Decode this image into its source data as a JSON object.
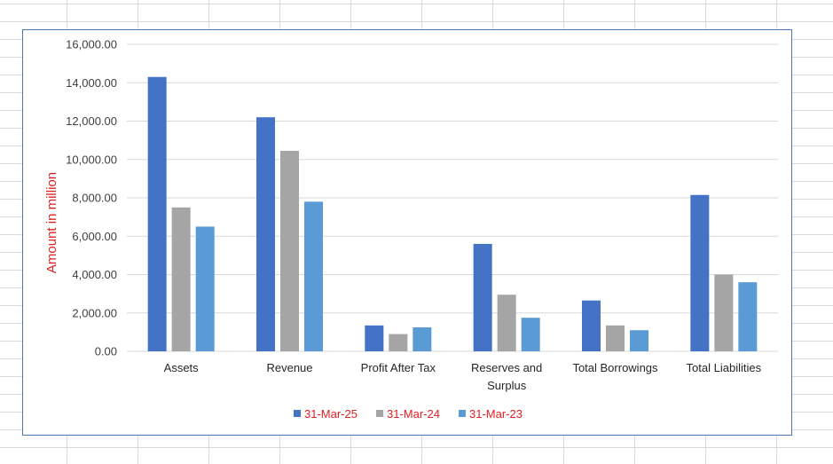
{
  "chart_data": {
    "type": "bar",
    "title": "",
    "xlabel": "",
    "ylabel": "Amount in million",
    "categories": [
      "Assets",
      "Revenue",
      "Profit After Tax",
      "Reserves and Surplus",
      "Total Borrowings",
      "Total Liabilities"
    ],
    "category_lines": [
      [
        "Assets"
      ],
      [
        "Revenue"
      ],
      [
        "Profit After Tax"
      ],
      [
        "Reserves and",
        "Surplus"
      ],
      [
        "Total Borrowings"
      ],
      [
        "Total Liabilities"
      ]
    ],
    "series": [
      {
        "name": "31-Mar-25",
        "color": "#4472c4",
        "values": [
          14300,
          12200,
          1350,
          5600,
          2650,
          8150
        ]
      },
      {
        "name": "31-Mar-24",
        "color": "#a5a5a5",
        "values": [
          7500,
          10450,
          900,
          2950,
          1350,
          4000
        ]
      },
      {
        "name": "31-Mar-23",
        "color": "#5b9bd5",
        "values": [
          6500,
          7800,
          1250,
          1750,
          1100,
          3600
        ]
      }
    ],
    "ylim": [
      0,
      16000
    ],
    "yticks": [
      0,
      2000,
      4000,
      6000,
      8000,
      10000,
      12000,
      14000,
      16000
    ],
    "ytick_labels": [
      "0.00",
      "2,000.00",
      "4,000.00",
      "6,000.00",
      "8,000.00",
      "10,000.00",
      "12,000.00",
      "14,000.00",
      "16,000.00"
    ],
    "grid": true,
    "legend_position": "bottom",
    "gridline_color": "#d9d9d9",
    "ylabel_color": "#e02020",
    "legend_text_color": "#e02020"
  }
}
